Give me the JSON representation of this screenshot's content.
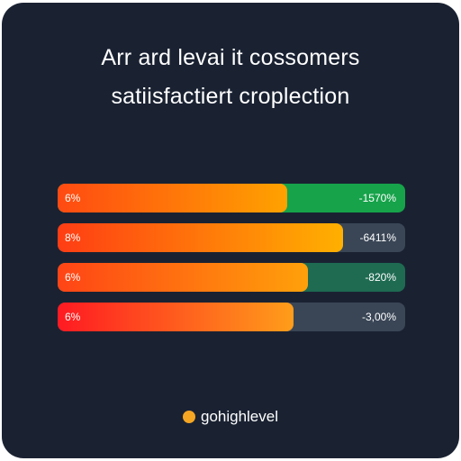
{
  "chart_data": {
    "type": "bar",
    "title_line1": "Arr ard levai it cossomers",
    "title_line2": "satiisfactiert croplection",
    "left_labels": [
      "6%",
      "8%",
      "6%",
      "6%"
    ],
    "right_labels": [
      "-1570%",
      "-6411%",
      "-820%",
      "-3,00%"
    ],
    "fill_fraction": [
      0.66,
      0.82,
      0.72,
      0.68
    ],
    "track_colors": [
      "#16a34a",
      "#3a4656",
      "#1e6b52",
      "#3a4656"
    ],
    "fill_gradients": [
      [
        "#ff4a12",
        "#ffa200"
      ],
      [
        "#ff3d14",
        "#ffb000"
      ],
      [
        "#ff4416",
        "#ffa10a"
      ],
      [
        "#ff1a22",
        "#ff9d1a"
      ]
    ]
  },
  "brand": {
    "name": "gohighlevel",
    "dot_color": "#f5a623"
  }
}
